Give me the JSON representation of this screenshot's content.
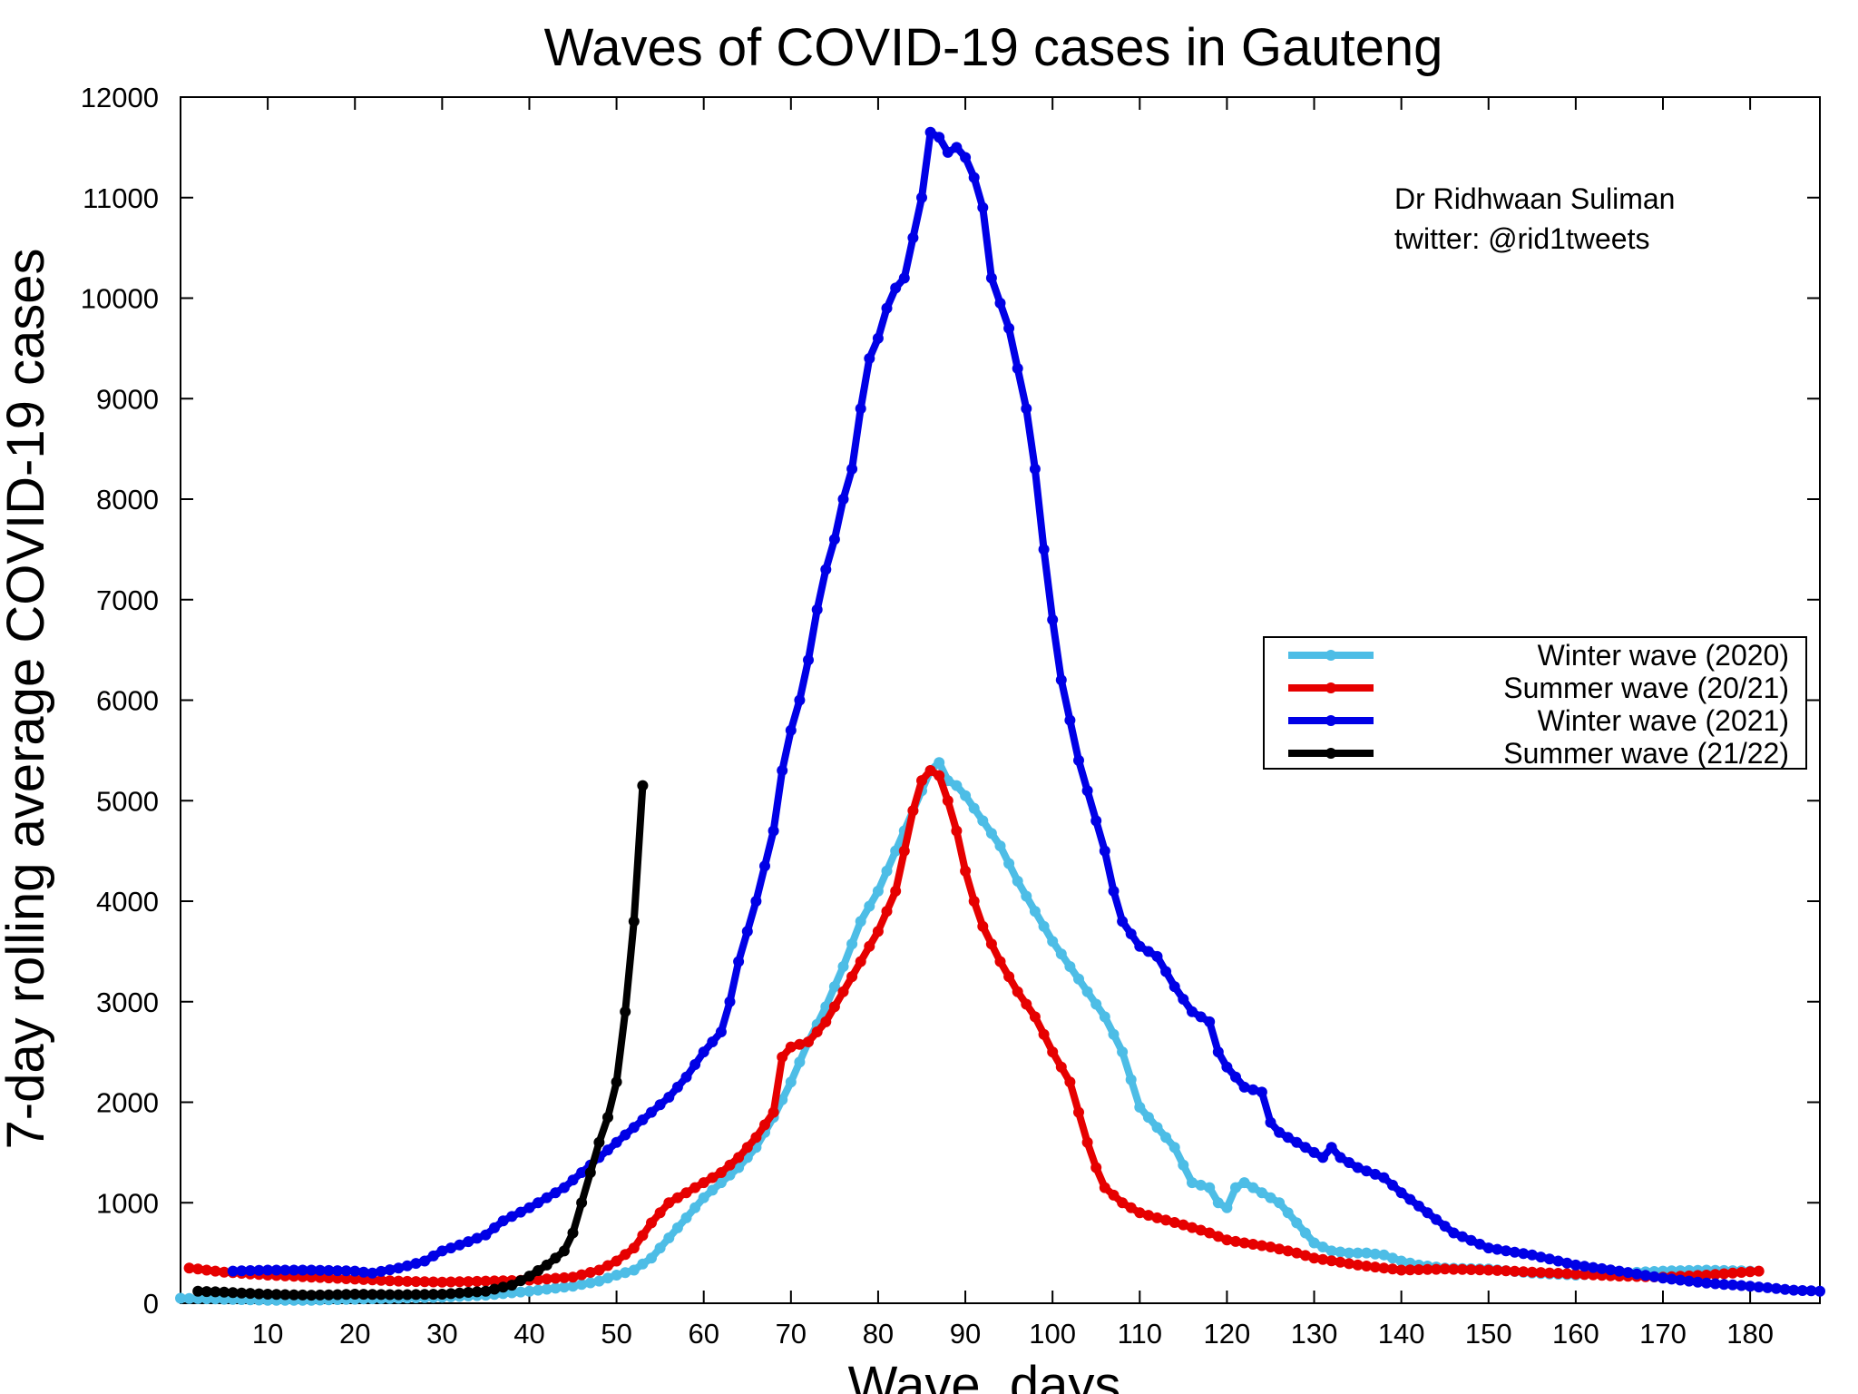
{
  "chart_data": {
    "type": "line",
    "title": "Waves of COVID-19 cases in Gauteng",
    "xlabel": "Wave, days",
    "ylabel": "7-day rolling average COVID-19 cases",
    "xlim": [
      0,
      188
    ],
    "ylim": [
      0,
      12000
    ],
    "xticks": [
      10,
      20,
      30,
      40,
      50,
      60,
      70,
      80,
      90,
      100,
      110,
      120,
      130,
      140,
      150,
      160,
      170,
      180
    ],
    "yticks": [
      0,
      1000,
      2000,
      3000,
      4000,
      5000,
      6000,
      7000,
      8000,
      9000,
      10000,
      11000,
      12000
    ],
    "grid": false,
    "legend_position": "right",
    "credit": [
      "Dr Ridhwaan Suliman",
      "twitter: @rid1tweets"
    ],
    "series": [
      {
        "name": "Winter wave (2020)",
        "color": "#4dbde6",
        "points": [
          [
            0,
            50
          ],
          [
            5,
            40
          ],
          [
            10,
            30
          ],
          [
            15,
            30
          ],
          [
            20,
            40
          ],
          [
            25,
            50
          ],
          [
            30,
            60
          ],
          [
            35,
            80
          ],
          [
            40,
            120
          ],
          [
            45,
            170
          ],
          [
            48,
            220
          ],
          [
            50,
            280
          ],
          [
            52,
            330
          ],
          [
            54,
            450
          ],
          [
            56,
            650
          ],
          [
            58,
            850
          ],
          [
            60,
            1050
          ],
          [
            62,
            1200
          ],
          [
            64,
            1350
          ],
          [
            66,
            1550
          ],
          [
            68,
            1850
          ],
          [
            70,
            2200
          ],
          [
            72,
            2600
          ],
          [
            74,
            2950
          ],
          [
            76,
            3350
          ],
          [
            78,
            3800
          ],
          [
            80,
            4100
          ],
          [
            82,
            4500
          ],
          [
            84,
            4900
          ],
          [
            86,
            5300
          ],
          [
            87,
            5380
          ],
          [
            88,
            5200
          ],
          [
            89,
            5150
          ],
          [
            90,
            5050
          ],
          [
            92,
            4800
          ],
          [
            94,
            4550
          ],
          [
            96,
            4200
          ],
          [
            98,
            3900
          ],
          [
            100,
            3600
          ],
          [
            102,
            3350
          ],
          [
            104,
            3100
          ],
          [
            106,
            2850
          ],
          [
            108,
            2500
          ],
          [
            110,
            1950
          ],
          [
            112,
            1750
          ],
          [
            114,
            1550
          ],
          [
            116,
            1200
          ],
          [
            118,
            1150
          ],
          [
            119,
            1000
          ],
          [
            120,
            950
          ],
          [
            121,
            1150
          ],
          [
            122,
            1200
          ],
          [
            124,
            1100
          ],
          [
            126,
            1000
          ],
          [
            128,
            800
          ],
          [
            130,
            600
          ],
          [
            132,
            520
          ],
          [
            134,
            500
          ],
          [
            136,
            500
          ],
          [
            138,
            480
          ],
          [
            140,
            420
          ],
          [
            142,
            380
          ],
          [
            145,
            350
          ],
          [
            150,
            340
          ],
          [
            155,
            300
          ],
          [
            160,
            280
          ],
          [
            165,
            300
          ],
          [
            170,
            320
          ],
          [
            175,
            330
          ],
          [
            180,
            320
          ]
        ]
      },
      {
        "name": "Summer wave (20/21)",
        "color": "#e60000",
        "points": [
          [
            1,
            350
          ],
          [
            5,
            310
          ],
          [
            10,
            280
          ],
          [
            15,
            260
          ],
          [
            20,
            240
          ],
          [
            25,
            220
          ],
          [
            30,
            210
          ],
          [
            35,
            220
          ],
          [
            40,
            230
          ],
          [
            45,
            260
          ],
          [
            48,
            330
          ],
          [
            50,
            420
          ],
          [
            52,
            550
          ],
          [
            54,
            800
          ],
          [
            56,
            1000
          ],
          [
            58,
            1100
          ],
          [
            60,
            1200
          ],
          [
            62,
            1300
          ],
          [
            64,
            1450
          ],
          [
            66,
            1650
          ],
          [
            68,
            1900
          ],
          [
            69,
            2450
          ],
          [
            70,
            2550
          ],
          [
            72,
            2600
          ],
          [
            74,
            2800
          ],
          [
            76,
            3100
          ],
          [
            78,
            3400
          ],
          [
            80,
            3700
          ],
          [
            82,
            4100
          ],
          [
            83,
            4500
          ],
          [
            84,
            4900
          ],
          [
            85,
            5200
          ],
          [
            86,
            5300
          ],
          [
            87,
            5250
          ],
          [
            88,
            5000
          ],
          [
            89,
            4700
          ],
          [
            90,
            4300
          ],
          [
            91,
            4000
          ],
          [
            92,
            3750
          ],
          [
            94,
            3400
          ],
          [
            96,
            3100
          ],
          [
            98,
            2850
          ],
          [
            100,
            2500
          ],
          [
            102,
            2200
          ],
          [
            103,
            1900
          ],
          [
            104,
            1600
          ],
          [
            105,
            1350
          ],
          [
            106,
            1150
          ],
          [
            108,
            1000
          ],
          [
            110,
            900
          ],
          [
            112,
            850
          ],
          [
            115,
            780
          ],
          [
            118,
            700
          ],
          [
            120,
            630
          ],
          [
            122,
            600
          ],
          [
            125,
            560
          ],
          [
            128,
            500
          ],
          [
            130,
            450
          ],
          [
            135,
            380
          ],
          [
            140,
            330
          ],
          [
            145,
            340
          ],
          [
            150,
            330
          ],
          [
            155,
            310
          ],
          [
            160,
            290
          ],
          [
            165,
            270
          ],
          [
            170,
            260
          ],
          [
            175,
            280
          ],
          [
            178,
            300
          ],
          [
            181,
            320
          ]
        ]
      },
      {
        "name": "Winter wave (2021)",
        "color": "#0000e6",
        "points": [
          [
            6,
            320
          ],
          [
            10,
            330
          ],
          [
            15,
            330
          ],
          [
            20,
            320
          ],
          [
            22,
            300
          ],
          [
            25,
            350
          ],
          [
            28,
            420
          ],
          [
            30,
            520
          ],
          [
            32,
            580
          ],
          [
            35,
            680
          ],
          [
            37,
            820
          ],
          [
            40,
            950
          ],
          [
            42,
            1050
          ],
          [
            44,
            1150
          ],
          [
            46,
            1300
          ],
          [
            48,
            1450
          ],
          [
            50,
            1600
          ],
          [
            52,
            1750
          ],
          [
            54,
            1900
          ],
          [
            56,
            2050
          ],
          [
            58,
            2250
          ],
          [
            60,
            2500
          ],
          [
            62,
            2700
          ],
          [
            63,
            3000
          ],
          [
            64,
            3400
          ],
          [
            66,
            4000
          ],
          [
            68,
            4700
          ],
          [
            69,
            5300
          ],
          [
            70,
            5700
          ],
          [
            71,
            6000
          ],
          [
            72,
            6400
          ],
          [
            73,
            6900
          ],
          [
            74,
            7300
          ],
          [
            75,
            7600
          ],
          [
            76,
            8000
          ],
          [
            77,
            8300
          ],
          [
            78,
            8900
          ],
          [
            79,
            9400
          ],
          [
            80,
            9600
          ],
          [
            81,
            9900
          ],
          [
            82,
            10100
          ],
          [
            83,
            10200
          ],
          [
            84,
            10600
          ],
          [
            85,
            11000
          ],
          [
            86,
            11650
          ],
          [
            87,
            11600
          ],
          [
            88,
            11450
          ],
          [
            89,
            11500
          ],
          [
            90,
            11400
          ],
          [
            91,
            11200
          ],
          [
            92,
            10900
          ],
          [
            93,
            10200
          ],
          [
            94,
            9950
          ],
          [
            95,
            9700
          ],
          [
            96,
            9300
          ],
          [
            97,
            8900
          ],
          [
            98,
            8300
          ],
          [
            99,
            7500
          ],
          [
            100,
            6800
          ],
          [
            101,
            6200
          ],
          [
            102,
            5800
          ],
          [
            103,
            5400
          ],
          [
            104,
            5100
          ],
          [
            105,
            4800
          ],
          [
            106,
            4500
          ],
          [
            107,
            4100
          ],
          [
            108,
            3800
          ],
          [
            110,
            3550
          ],
          [
            112,
            3450
          ],
          [
            114,
            3150
          ],
          [
            116,
            2900
          ],
          [
            118,
            2800
          ],
          [
            119,
            2500
          ],
          [
            120,
            2350
          ],
          [
            122,
            2150
          ],
          [
            124,
            2100
          ],
          [
            125,
            1800
          ],
          [
            126,
            1700
          ],
          [
            128,
            1600
          ],
          [
            130,
            1500
          ],
          [
            131,
            1450
          ],
          [
            132,
            1550
          ],
          [
            133,
            1450
          ],
          [
            135,
            1350
          ],
          [
            138,
            1250
          ],
          [
            140,
            1100
          ],
          [
            143,
            900
          ],
          [
            146,
            700
          ],
          [
            150,
            550
          ],
          [
            155,
            480
          ],
          [
            160,
            380
          ],
          [
            165,
            320
          ],
          [
            170,
            250
          ],
          [
            175,
            200
          ],
          [
            180,
            170
          ],
          [
            185,
            130
          ],
          [
            188,
            120
          ]
        ]
      },
      {
        "name": "Summer wave (21/22)",
        "color": "#000000",
        "points": [
          [
            2,
            120
          ],
          [
            5,
            110
          ],
          [
            10,
            90
          ],
          [
            15,
            80
          ],
          [
            20,
            90
          ],
          [
            25,
            85
          ],
          [
            30,
            90
          ],
          [
            35,
            120
          ],
          [
            38,
            180
          ],
          [
            40,
            270
          ],
          [
            42,
            380
          ],
          [
            44,
            520
          ],
          [
            45,
            700
          ],
          [
            46,
            1000
          ],
          [
            47,
            1300
          ],
          [
            48,
            1600
          ],
          [
            49,
            1850
          ],
          [
            50,
            2200
          ],
          [
            51,
            2900
          ],
          [
            52,
            3800
          ],
          [
            53,
            5150
          ]
        ]
      }
    ]
  }
}
